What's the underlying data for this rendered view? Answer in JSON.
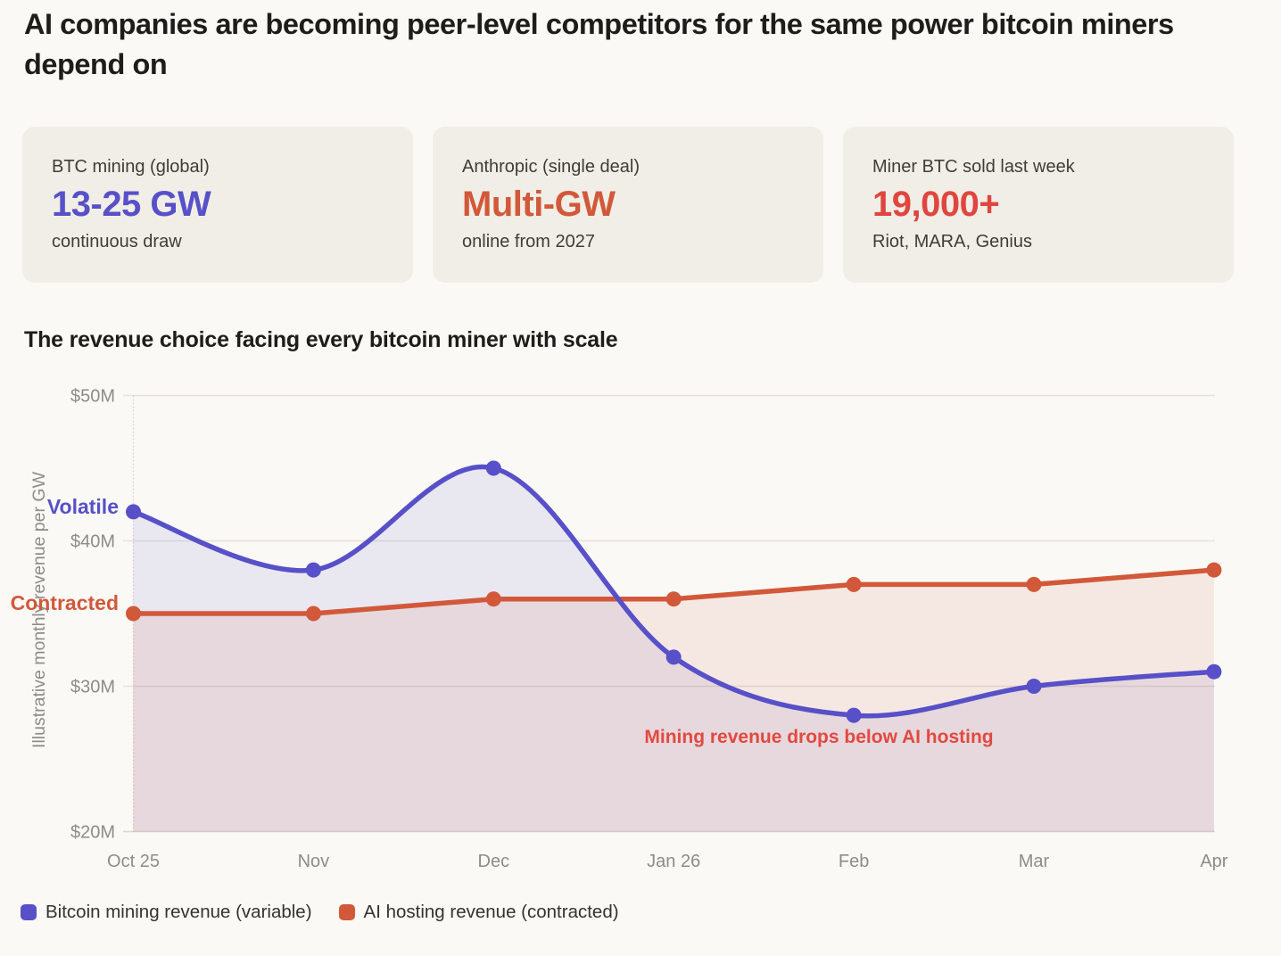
{
  "page": {
    "title": "AI companies are becoming peer-level competitors for the same power bitcoin miners depend on",
    "section_title": "The revenue choice facing every bitcoin miner with scale"
  },
  "stats": [
    {
      "label": "BTC mining (global)",
      "value": "13-25 GW",
      "sub": "continuous draw",
      "color": "#5750C8"
    },
    {
      "label": "Anthropic (single deal)",
      "value": "Multi-GW",
      "sub": "online from 2027",
      "color": "#D2583A"
    },
    {
      "label": "Miner BTC sold last week",
      "value": "19,000+",
      "sub": "Riot, MARA, Genius",
      "color": "#E0453F"
    }
  ],
  "chart_data": {
    "type": "line",
    "title": "The revenue choice facing every bitcoin miner with scale",
    "categories": [
      "Oct 25",
      "Nov",
      "Dec",
      "Jan 26",
      "Feb",
      "Mar",
      "Apr"
    ],
    "series": [
      {
        "name": "Bitcoin mining revenue (variable)",
        "values": [
          42,
          38,
          45,
          32,
          28,
          30,
          31
        ],
        "color": "#5750C8",
        "style": "smooth",
        "fill_opacity": 0.1
      },
      {
        "name": "AI hosting revenue (contracted)",
        "values": [
          35,
          35,
          36,
          36,
          37,
          37,
          38
        ],
        "color": "#D2583A",
        "style": "straight",
        "fill_opacity": 0.1
      }
    ],
    "xlabel": "",
    "ylabel": "Illustrative monthly revenue per GW",
    "ylim": [
      20,
      50
    ],
    "yticks": [
      {
        "value": 50,
        "label": "$50M"
      },
      {
        "value": 40,
        "label": "$40M"
      },
      {
        "value": 30,
        "label": "$30M"
      },
      {
        "value": 20,
        "label": "$20M"
      }
    ],
    "grid": true,
    "legend_position": "bottom",
    "annotations": [
      {
        "text": "Volatile",
        "color": "#5750C8",
        "attach": "series-0-point-0"
      },
      {
        "text": "Contracted",
        "color": "#D2583A",
        "attach": "series-1-point-0"
      },
      {
        "text": "Mining revenue drops below AI hosting",
        "color": "#E2493F",
        "attach": "crossover-region"
      }
    ]
  }
}
